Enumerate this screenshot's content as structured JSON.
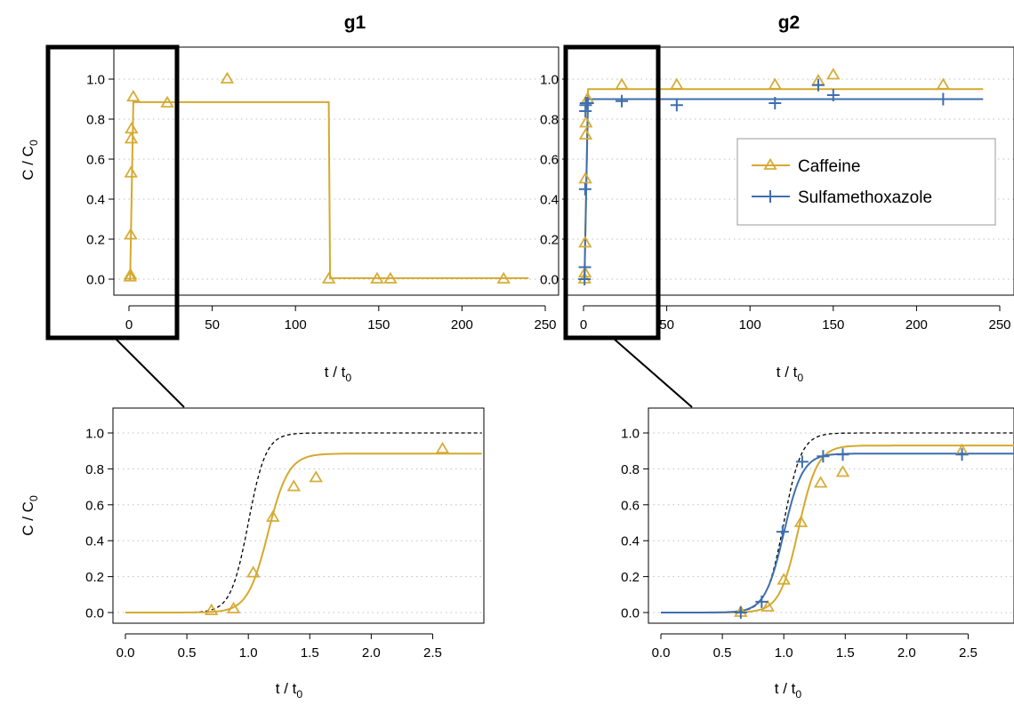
{
  "colors": {
    "caffeine": "#D4A92E",
    "sulfamethoxazole": "#3E6FAE",
    "ideal": "#000000",
    "zoom_frame": "#000000",
    "grid": "#BFBFBF"
  },
  "legend": {
    "placement": "top-right of g2 panel",
    "entries": [
      {
        "label": "Caffeine",
        "marker": "triangle",
        "color_key": "caffeine"
      },
      {
        "label": "Sulfamethoxazole",
        "marker": "plus",
        "color_key": "sulfamethoxazole"
      }
    ]
  },
  "chart_data": [
    {
      "id": "g1-main",
      "type": "scatter",
      "title": "g1",
      "xlabel": "t / t0",
      "ylabel": "C / C0",
      "xlim": [
        0,
        250
      ],
      "ylim": [
        0,
        1.0
      ],
      "xticks": [
        0,
        50,
        100,
        150,
        200,
        250
      ],
      "yticks": [
        0.0,
        0.2,
        0.4,
        0.6,
        0.8,
        1.0
      ],
      "tick_labels_x": [
        "0",
        "50",
        "100",
        "150",
        "200",
        "250"
      ],
      "tick_labels_y": [
        "0.0",
        "0.2",
        "0.4",
        "0.6",
        "0.8",
        "1.0"
      ],
      "grid": "horizontal dotted",
      "series": [
        {
          "color_key": "caffeine",
          "marker": "triangle",
          "points": [
            [
              0.7,
              0.01
            ],
            [
              0.88,
              0.02
            ],
            [
              1.04,
              0.22
            ],
            [
              1.2,
              0.53
            ],
            [
              1.37,
              0.7
            ],
            [
              1.55,
              0.75
            ],
            [
              2.58,
              0.91
            ],
            [
              23,
              0.88
            ],
            [
              59,
              1.0
            ],
            [
              120,
              0.0
            ],
            [
              149,
              0.0
            ],
            [
              157,
              0.0
            ],
            [
              225,
              0.0
            ]
          ],
          "line": [
            [
              0,
              0
            ],
            [
              0.7,
              0
            ],
            [
              2.6,
              0.885
            ],
            [
              120,
              0.885
            ],
            [
              120.8,
              0.005
            ],
            [
              240,
              0.005
            ]
          ]
        }
      ]
    },
    {
      "id": "g2-main",
      "type": "scatter",
      "title": "g2",
      "xlabel": "t / t0",
      "ylabel": "",
      "xlim": [
        0,
        250
      ],
      "ylim": [
        0,
        1.0
      ],
      "xticks": [
        0,
        50,
        100,
        150,
        200,
        250
      ],
      "yticks": [
        0.0,
        0.2,
        0.4,
        0.6,
        0.8,
        1.0
      ],
      "tick_labels_x": [
        "0",
        "50",
        "100",
        "150",
        "200",
        "250"
      ],
      "tick_labels_y": [
        "0.0",
        "0.2",
        "0.4",
        "0.6",
        "0.8",
        "1.0"
      ],
      "grid": "horizontal dotted",
      "series": [
        {
          "color_key": "caffeine",
          "marker": "triangle",
          "points": [
            [
              0.65,
              0.0
            ],
            [
              0.9,
              0.03
            ],
            [
              0.98,
              0.18
            ],
            [
              1.15,
              0.5
            ],
            [
              1.31,
              0.72
            ],
            [
              1.48,
              0.78
            ],
            [
              2.45,
              0.9
            ],
            [
              23,
              0.97
            ],
            [
              56,
              0.97
            ],
            [
              115,
              0.97
            ],
            [
              141,
              0.99
            ],
            [
              150,
              1.02
            ],
            [
              216,
              0.97
            ]
          ],
          "line": [
            [
              0,
              0
            ],
            [
              0.6,
              0
            ],
            [
              2.7,
              0.95
            ],
            [
              240,
              0.95
            ]
          ]
        },
        {
          "color_key": "sulfamethoxazole",
          "marker": "plus",
          "points": [
            [
              0.65,
              0.0
            ],
            [
              0.82,
              0.06
            ],
            [
              0.99,
              0.45
            ],
            [
              1.15,
              0.84
            ],
            [
              1.32,
              0.87
            ],
            [
              1.48,
              0.88
            ],
            [
              2.45,
              0.88
            ],
            [
              23,
              0.89
            ],
            [
              56,
              0.87
            ],
            [
              115,
              0.88
            ],
            [
              141,
              0.97
            ],
            [
              150,
              0.92
            ],
            [
              216,
              0.9
            ]
          ],
          "line": [
            [
              0,
              0
            ],
            [
              0.6,
              0
            ],
            [
              2.7,
              0.9
            ],
            [
              240,
              0.9
            ]
          ]
        }
      ]
    },
    {
      "id": "g1-zoom",
      "type": "line",
      "title": "",
      "xlabel": "t / t0",
      "ylabel": "C / C0",
      "xlim": [
        0,
        2.75
      ],
      "ylim": [
        0,
        1.0
      ],
      "xticks": [
        0.0,
        0.5,
        1.0,
        1.5,
        2.0,
        2.5
      ],
      "yticks": [
        0.0,
        0.2,
        0.4,
        0.6,
        0.8,
        1.0
      ],
      "tick_labels_x": [
        "0.0",
        "0.5",
        "1.0",
        "1.5",
        "2.0",
        "2.5"
      ],
      "tick_labels_y": [
        "0.0",
        "0.2",
        "0.4",
        "0.6",
        "0.8",
        "1.0"
      ],
      "grid": "horizontal dotted",
      "ideal_curve": {
        "max": 1.0,
        "mid": 1.0,
        "k": 14
      },
      "series": [
        {
          "color_key": "caffeine",
          "marker": "triangle",
          "points": [
            [
              0.7,
              0.01
            ],
            [
              0.88,
              0.02
            ],
            [
              1.04,
              0.22
            ],
            [
              1.2,
              0.53
            ],
            [
              1.37,
              0.7
            ],
            [
              1.55,
              0.75
            ],
            [
              2.58,
              0.91
            ]
          ],
          "fit": {
            "max": 0.885,
            "mid": 1.16,
            "k": 12
          }
        }
      ]
    },
    {
      "id": "g2-zoom",
      "type": "line",
      "title": "",
      "xlabel": "t / t0",
      "ylabel": "",
      "xlim": [
        0,
        2.75
      ],
      "ylim": [
        0,
        1.0
      ],
      "xticks": [
        0.0,
        0.5,
        1.0,
        1.5,
        2.0,
        2.5
      ],
      "yticks": [
        0.0,
        0.2,
        0.4,
        0.6,
        0.8,
        1.0
      ],
      "tick_labels_x": [
        "0.0",
        "0.5",
        "1.0",
        "1.5",
        "2.0",
        "2.5"
      ],
      "tick_labels_y": [
        "0.0",
        "0.2",
        "0.4",
        "0.6",
        "0.8",
        "1.0"
      ],
      "grid": "horizontal dotted",
      "ideal_curve": {
        "max": 1.0,
        "mid": 1.0,
        "k": 14
      },
      "series": [
        {
          "color_key": "caffeine",
          "marker": "triangle",
          "points": [
            [
              0.65,
              0.0
            ],
            [
              0.87,
              0.03
            ],
            [
              1.0,
              0.18
            ],
            [
              1.14,
              0.5
            ],
            [
              1.3,
              0.72
            ],
            [
              1.48,
              0.78
            ],
            [
              2.45,
              0.9
            ]
          ],
          "fit": {
            "max": 0.93,
            "mid": 1.12,
            "k": 13
          }
        },
        {
          "color_key": "sulfamethoxazole",
          "marker": "plus",
          "points": [
            [
              0.65,
              0.0
            ],
            [
              0.82,
              0.06
            ],
            [
              0.99,
              0.45
            ],
            [
              1.15,
              0.84
            ],
            [
              1.32,
              0.87
            ],
            [
              1.48,
              0.88
            ],
            [
              2.45,
              0.88
            ]
          ],
          "fit": {
            "max": 0.885,
            "mid": 1.0,
            "k": 13
          }
        }
      ]
    }
  ]
}
